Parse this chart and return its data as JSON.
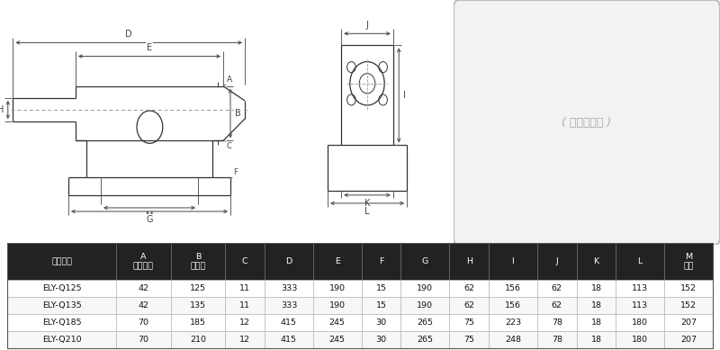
{
  "bg_color": "#ffffff",
  "table": {
    "header_bg": "#222222",
    "header_fg": "#ffffff",
    "row_bg": "#ffffff",
    "border_color": "#555555",
    "headers": [
      "规格型号",
      "A\n顶针行程",
      "B\n中心高",
      "C",
      "D",
      "E",
      "F",
      "G",
      "H",
      "I",
      "J",
      "K",
      "L",
      "M\n孔距"
    ],
    "data_rows": [
      [
        "ELY-Q125",
        "42",
        "125",
        "11",
        "333",
        "190",
        "15",
        "190",
        "62",
        "156",
        "62",
        "18",
        "113",
        "152"
      ],
      [
        "ELY-Q135",
        "42",
        "135",
        "11",
        "333",
        "190",
        "15",
        "190",
        "62",
        "156",
        "62",
        "18",
        "113",
        "152"
      ],
      [
        "ELY-Q185",
        "70",
        "185",
        "12",
        "415",
        "245",
        "30",
        "265",
        "75",
        "223",
        "78",
        "18",
        "180",
        "207"
      ],
      [
        "ELY-Q210",
        "70",
        "210",
        "12",
        "415",
        "245",
        "30",
        "265",
        "75",
        "248",
        "78",
        "18",
        "180",
        "207"
      ]
    ],
    "col_widths_rel": [
      1.8,
      0.9,
      0.9,
      0.65,
      0.8,
      0.8,
      0.65,
      0.8,
      0.65,
      0.8,
      0.65,
      0.65,
      0.8,
      0.8
    ]
  },
  "line_color": "#333333",
  "dim_color": "#444444",
  "dash_color": "#999999",
  "photo_border": "#bbbbbb",
  "photo_bg": "#f2f2f2"
}
